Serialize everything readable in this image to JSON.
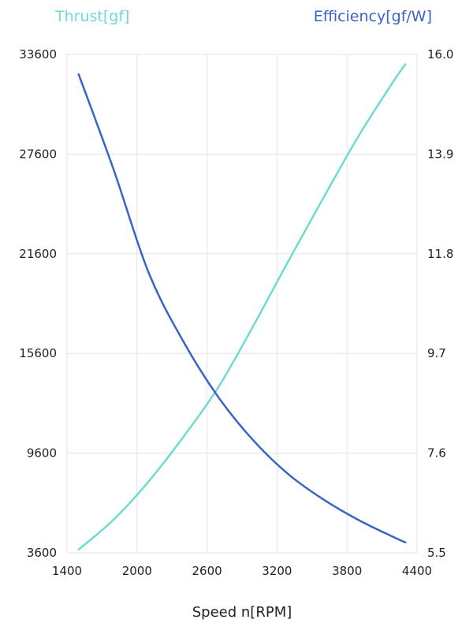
{
  "chart_data": {
    "type": "line",
    "xlabel": "Speed n[RPM]",
    "xlim": [
      1400,
      4400
    ],
    "x_ticks": [
      "1400",
      "2000",
      "2600",
      "3200",
      "3800",
      "4400"
    ],
    "left_axis": {
      "label": "Thrust[gf]",
      "ylim": [
        3600,
        33600
      ],
      "ticks": [
        "3600",
        "9600",
        "15600",
        "21600",
        "27600",
        "33600"
      ]
    },
    "right_axis": {
      "label": "Efficiency[gf/W]",
      "ylim": [
        5.5,
        16.0
      ],
      "ticks": [
        "5.5",
        "7.6",
        "9.7",
        "11.8",
        "13.9",
        "16.0"
      ]
    },
    "grid": true,
    "series": [
      {
        "name": "Thrust[gf]",
        "axis": "left",
        "color": "#6edbd1",
        "x": [
          1500,
          1800,
          2100,
          2400,
          2700,
          3000,
          3300,
          3600,
          3900,
          4200,
          4300
        ],
        "y": [
          3800,
          5600,
          7900,
          10600,
          13600,
          17300,
          21200,
          25000,
          28700,
          32000,
          33000
        ]
      },
      {
        "name": "Efficiency[gf/W]",
        "axis": "right",
        "color": "#3a63c8",
        "x": [
          1500,
          1800,
          2100,
          2400,
          2700,
          3000,
          3300,
          3600,
          3900,
          4200,
          4300
        ],
        "y": [
          15.58,
          13.57,
          11.4,
          9.94,
          8.77,
          7.86,
          7.15,
          6.62,
          6.19,
          5.83,
          5.72
        ]
      }
    ]
  }
}
